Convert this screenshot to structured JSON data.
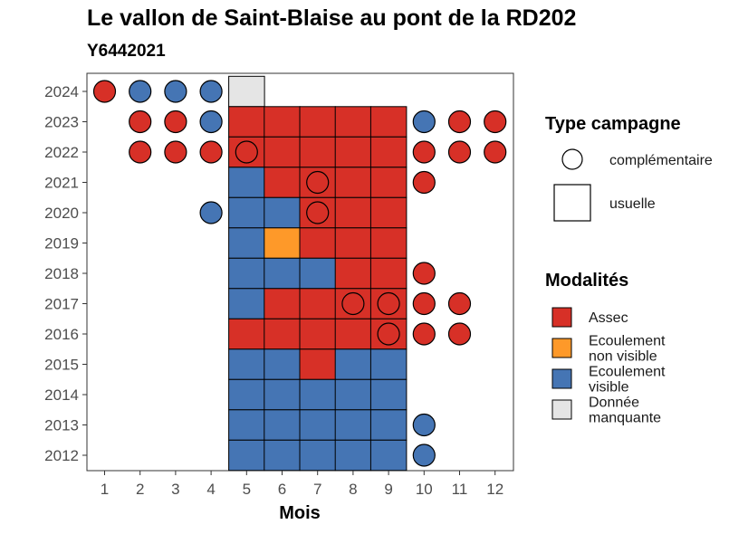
{
  "chart_data": {
    "type": "heatmap",
    "title": "Le vallon de Saint-Blaise au pont de la RD202",
    "subtitle": "Y6442021",
    "xlabel": "Mois",
    "ylabel": "",
    "x_ticks": [
      "1",
      "2",
      "3",
      "4",
      "5",
      "6",
      "7",
      "8",
      "9",
      "10",
      "11",
      "12"
    ],
    "y_ticks": [
      "2024",
      "2023",
      "2022",
      "2021",
      "2020",
      "2019",
      "2018",
      "2017",
      "2016",
      "2015",
      "2014",
      "2013",
      "2012"
    ],
    "grid": false,
    "legend_position": "right",
    "colors": {
      "Assec": "#d73027",
      "Ecoulement non visible": "#fe9929",
      "Ecoulement visible": "#4575b4",
      "Donnée manquante": "#e5e5e5"
    },
    "legend_type": {
      "title": "Type campagne",
      "items": [
        {
          "label": "complémentaire",
          "shape": "circle"
        },
        {
          "label": "usuelle",
          "shape": "square"
        }
      ]
    },
    "legend_modalites": {
      "title": "Modalités",
      "items": [
        {
          "key": "Assec",
          "lines": [
            "Assec"
          ]
        },
        {
          "key": "Ecoulement non visible",
          "lines": [
            "Ecoulement",
            "non visible"
          ]
        },
        {
          "key": "Ecoulement visible",
          "lines": [
            "Ecoulement",
            "visible"
          ]
        },
        {
          "key": "Donnée manquante",
          "lines": [
            "Donnée",
            "manquante"
          ]
        }
      ]
    },
    "usuelle": [
      {
        "year": 2024,
        "month": 5,
        "value": "Donnée manquante"
      },
      {
        "year": 2023,
        "month": 5,
        "value": "Assec"
      },
      {
        "year": 2023,
        "month": 6,
        "value": "Assec"
      },
      {
        "year": 2023,
        "month": 7,
        "value": "Assec"
      },
      {
        "year": 2023,
        "month": 8,
        "value": "Assec"
      },
      {
        "year": 2023,
        "month": 9,
        "value": "Assec"
      },
      {
        "year": 2022,
        "month": 5,
        "value": "Assec"
      },
      {
        "year": 2022,
        "month": 6,
        "value": "Assec"
      },
      {
        "year": 2022,
        "month": 7,
        "value": "Assec"
      },
      {
        "year": 2022,
        "month": 8,
        "value": "Assec"
      },
      {
        "year": 2022,
        "month": 9,
        "value": "Assec"
      },
      {
        "year": 2021,
        "month": 5,
        "value": "Ecoulement visible"
      },
      {
        "year": 2021,
        "month": 6,
        "value": "Assec"
      },
      {
        "year": 2021,
        "month": 7,
        "value": "Assec"
      },
      {
        "year": 2021,
        "month": 8,
        "value": "Assec"
      },
      {
        "year": 2021,
        "month": 9,
        "value": "Assec"
      },
      {
        "year": 2020,
        "month": 5,
        "value": "Ecoulement visible"
      },
      {
        "year": 2020,
        "month": 6,
        "value": "Ecoulement visible"
      },
      {
        "year": 2020,
        "month": 7,
        "value": "Assec"
      },
      {
        "year": 2020,
        "month": 8,
        "value": "Assec"
      },
      {
        "year": 2020,
        "month": 9,
        "value": "Assec"
      },
      {
        "year": 2019,
        "month": 5,
        "value": "Ecoulement visible"
      },
      {
        "year": 2019,
        "month": 6,
        "value": "Ecoulement non visible"
      },
      {
        "year": 2019,
        "month": 7,
        "value": "Assec"
      },
      {
        "year": 2019,
        "month": 8,
        "value": "Assec"
      },
      {
        "year": 2019,
        "month": 9,
        "value": "Assec"
      },
      {
        "year": 2018,
        "month": 5,
        "value": "Ecoulement visible"
      },
      {
        "year": 2018,
        "month": 6,
        "value": "Ecoulement visible"
      },
      {
        "year": 2018,
        "month": 7,
        "value": "Ecoulement visible"
      },
      {
        "year": 2018,
        "month": 8,
        "value": "Assec"
      },
      {
        "year": 2018,
        "month": 9,
        "value": "Assec"
      },
      {
        "year": 2017,
        "month": 5,
        "value": "Ecoulement visible"
      },
      {
        "year": 2017,
        "month": 6,
        "value": "Assec"
      },
      {
        "year": 2017,
        "month": 7,
        "value": "Assec"
      },
      {
        "year": 2017,
        "month": 8,
        "value": "Assec"
      },
      {
        "year": 2017,
        "month": 9,
        "value": "Assec"
      },
      {
        "year": 2016,
        "month": 5,
        "value": "Assec"
      },
      {
        "year": 2016,
        "month": 6,
        "value": "Assec"
      },
      {
        "year": 2016,
        "month": 7,
        "value": "Assec"
      },
      {
        "year": 2016,
        "month": 8,
        "value": "Assec"
      },
      {
        "year": 2016,
        "month": 9,
        "value": "Assec"
      },
      {
        "year": 2015,
        "month": 5,
        "value": "Ecoulement visible"
      },
      {
        "year": 2015,
        "month": 6,
        "value": "Ecoulement visible"
      },
      {
        "year": 2015,
        "month": 7,
        "value": "Assec"
      },
      {
        "year": 2015,
        "month": 8,
        "value": "Ecoulement visible"
      },
      {
        "year": 2015,
        "month": 9,
        "value": "Ecoulement visible"
      },
      {
        "year": 2014,
        "month": 5,
        "value": "Ecoulement visible"
      },
      {
        "year": 2014,
        "month": 6,
        "value": "Ecoulement visible"
      },
      {
        "year": 2014,
        "month": 7,
        "value": "Ecoulement visible"
      },
      {
        "year": 2014,
        "month": 8,
        "value": "Ecoulement visible"
      },
      {
        "year": 2014,
        "month": 9,
        "value": "Ecoulement visible"
      },
      {
        "year": 2013,
        "month": 5,
        "value": "Ecoulement visible"
      },
      {
        "year": 2013,
        "month": 6,
        "value": "Ecoulement visible"
      },
      {
        "year": 2013,
        "month": 7,
        "value": "Ecoulement visible"
      },
      {
        "year": 2013,
        "month": 8,
        "value": "Ecoulement visible"
      },
      {
        "year": 2013,
        "month": 9,
        "value": "Ecoulement visible"
      },
      {
        "year": 2012,
        "month": 5,
        "value": "Ecoulement visible"
      },
      {
        "year": 2012,
        "month": 6,
        "value": "Ecoulement visible"
      },
      {
        "year": 2012,
        "month": 7,
        "value": "Ecoulement visible"
      },
      {
        "year": 2012,
        "month": 8,
        "value": "Ecoulement visible"
      },
      {
        "year": 2012,
        "month": 9,
        "value": "Ecoulement visible"
      }
    ],
    "complementaire": [
      {
        "year": 2024,
        "month": 1,
        "value": "Assec"
      },
      {
        "year": 2024,
        "month": 2,
        "value": "Ecoulement visible"
      },
      {
        "year": 2024,
        "month": 3,
        "value": "Ecoulement visible"
      },
      {
        "year": 2024,
        "month": 4,
        "value": "Ecoulement visible"
      },
      {
        "year": 2023,
        "month": 2,
        "value": "Assec"
      },
      {
        "year": 2023,
        "month": 3,
        "value": "Assec"
      },
      {
        "year": 2023,
        "month": 4,
        "value": "Ecoulement visible"
      },
      {
        "year": 2023,
        "month": 10,
        "value": "Ecoulement visible"
      },
      {
        "year": 2023,
        "month": 11,
        "value": "Assec"
      },
      {
        "year": 2023,
        "month": 12,
        "value": "Assec"
      },
      {
        "year": 2022,
        "month": 2,
        "value": "Assec"
      },
      {
        "year": 2022,
        "month": 3,
        "value": "Assec"
      },
      {
        "year": 2022,
        "month": 4,
        "value": "Assec"
      },
      {
        "year": 2022,
        "month": 5,
        "value": "Assec"
      },
      {
        "year": 2022,
        "month": 10,
        "value": "Assec"
      },
      {
        "year": 2022,
        "month": 11,
        "value": "Assec"
      },
      {
        "year": 2022,
        "month": 12,
        "value": "Assec"
      },
      {
        "year": 2021,
        "month": 7,
        "value": "Assec"
      },
      {
        "year": 2021,
        "month": 10,
        "value": "Assec"
      },
      {
        "year": 2020,
        "month": 4,
        "value": "Ecoulement visible"
      },
      {
        "year": 2020,
        "month": 7,
        "value": "Assec"
      },
      {
        "year": 2018,
        "month": 10,
        "value": "Assec"
      },
      {
        "year": 2017,
        "month": 8,
        "value": "Assec"
      },
      {
        "year": 2017,
        "month": 9,
        "value": "Assec"
      },
      {
        "year": 2017,
        "month": 10,
        "value": "Assec"
      },
      {
        "year": 2017,
        "month": 11,
        "value": "Assec"
      },
      {
        "year": 2016,
        "month": 9,
        "value": "Assec"
      },
      {
        "year": 2016,
        "month": 10,
        "value": "Assec"
      },
      {
        "year": 2016,
        "month": 11,
        "value": "Assec"
      },
      {
        "year": 2013,
        "month": 10,
        "value": "Ecoulement visible"
      },
      {
        "year": 2012,
        "month": 10,
        "value": "Ecoulement visible"
      }
    ]
  }
}
